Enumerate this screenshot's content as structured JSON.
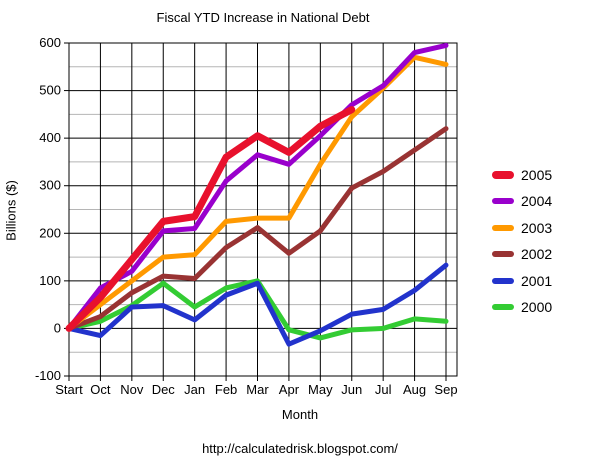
{
  "window": {
    "title": "Fiscal YTD Increase in National Debt"
  },
  "footer": {
    "url": "http://calculatedrisk.blogspot.com/"
  },
  "chart_data": {
    "type": "line",
    "title": "Fiscal YTD Increase in National Debt",
    "xlabel": "Month",
    "ylabel": "Billions ($)",
    "categories": [
      "Start",
      "Oct",
      "Nov",
      "Dec",
      "Jan",
      "Feb",
      "Mar",
      "Apr",
      "May",
      "Jun",
      "Jul",
      "Aug",
      "Sep"
    ],
    "ylim": [
      -100,
      600
    ],
    "yticks": [
      600,
      500,
      400,
      300,
      200,
      100,
      0,
      -100
    ],
    "minor_grid_step": 50,
    "grid": "major black horizontal every 100 and vertical every month; minor gray horizontal every 50",
    "legend_position": "right",
    "axis_color": "#000000",
    "grid_minor_color": "#b5b5b5",
    "background_color": "#ffffff",
    "series": [
      {
        "name": "2005",
        "color": "#e8112d",
        "line_width": 7,
        "values": [
          0,
          65,
          145,
          225,
          235,
          360,
          405,
          370,
          425,
          460,
          null,
          null,
          null
        ]
      },
      {
        "name": "2004",
        "color": "#9900cc",
        "line_width": 5,
        "values": [
          0,
          85,
          120,
          205,
          210,
          310,
          365,
          345,
          405,
          470,
          510,
          580,
          595
        ]
      },
      {
        "name": "2003",
        "color": "#ff9900",
        "line_width": 5,
        "values": [
          0,
          50,
          100,
          150,
          155,
          225,
          232,
          232,
          345,
          445,
          505,
          570,
          555
        ]
      },
      {
        "name": "2002",
        "color": "#993333",
        "line_width": 5,
        "values": [
          0,
          25,
          75,
          110,
          105,
          170,
          212,
          158,
          205,
          295,
          330,
          375,
          420
        ]
      },
      {
        "name": "2001",
        "color": "#2233cc",
        "line_width": 5,
        "values": [
          0,
          -15,
          45,
          48,
          18,
          70,
          95,
          -33,
          -5,
          30,
          40,
          80,
          133
        ]
      },
      {
        "name": "2000",
        "color": "#33cc33",
        "line_width": 5,
        "values": [
          0,
          15,
          48,
          95,
          45,
          85,
          100,
          -3,
          -20,
          -3,
          0,
          20,
          15
        ]
      }
    ]
  }
}
